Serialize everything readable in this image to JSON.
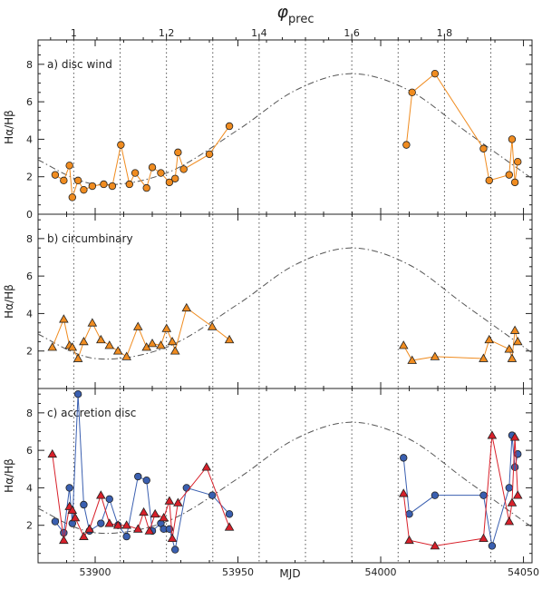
{
  "top_axis": {
    "label_main": "φ",
    "label_sub": "prec",
    "ticks": [
      1,
      1.2,
      1.4,
      1.6,
      1.8
    ],
    "tick_labels": [
      "1",
      "1.2",
      "1.4",
      "1.6",
      "1.8"
    ]
  },
  "x_axis": {
    "label": "MJD",
    "ticks": [
      53900,
      53950,
      54000,
      54050
    ],
    "tick_labels": [
      "53900",
      "53950",
      "54000",
      "54050"
    ],
    "xlim": [
      53880,
      54053
    ]
  },
  "y_label": "Hα/Hβ",
  "y_ticks": [
    "0",
    "2",
    "4",
    "6",
    "8"
  ],
  "colors": {
    "orange": "#f08c20",
    "blue": "#3a5fb0",
    "red": "#d8202a",
    "model": "#555555"
  },
  "chart_data": [
    {
      "panel_label": "a)  disc wind",
      "type": "line",
      "ylim": [
        0,
        9.3
      ],
      "model_curve": {
        "x": [
          53880,
          53900,
          53925,
          53950,
          53970,
          53990,
          54010,
          54030,
          54053
        ],
        "y": [
          2.9,
          1.6,
          2.2,
          4.5,
          6.6,
          7.5,
          6.6,
          4.4,
          1.9
        ]
      },
      "series": [
        {
          "marker": "circle",
          "color": "#f08c20",
          "segments": [
            {
              "x": [
                53886,
                53889,
                53891,
                53892,
                53894,
                53896,
                53899,
                53903,
                53906,
                53909,
                53912,
                53914,
                53918,
                53920,
                53923,
                53926,
                53928,
                53929,
                53931,
                53940,
                53947
              ],
              "y": [
                2.1,
                1.8,
                2.6,
                0.9,
                1.8,
                1.3,
                1.5,
                1.6,
                1.5,
                3.7,
                1.6,
                2.2,
                1.4,
                2.5,
                2.2,
                1.7,
                1.9,
                3.3,
                2.4,
                3.2,
                4.7
              ]
            },
            {
              "x": [
                54009,
                54011,
                54019,
                54036,
                54038,
                54045,
                54046,
                54047,
                54048
              ],
              "y": [
                3.7,
                6.5,
                7.5,
                3.5,
                1.8,
                2.1,
                4.0,
                1.7,
                2.8
              ]
            }
          ]
        }
      ]
    },
    {
      "panel_label": "b)  circumbinary",
      "type": "line",
      "ylim": [
        0,
        9.3
      ],
      "model_curve": {
        "x": [
          53880,
          53900,
          53925,
          53950,
          53970,
          53990,
          54010,
          54030,
          54053
        ],
        "y": [
          2.9,
          1.6,
          2.2,
          4.5,
          6.6,
          7.5,
          6.6,
          4.4,
          1.9
        ]
      },
      "series": [
        {
          "marker": "triangle",
          "color": "#f08c20",
          "segments": [
            {
              "x": [
                53885,
                53889,
                53891,
                53892,
                53894,
                53896,
                53899,
                53902,
                53905,
                53908,
                53911,
                53915,
                53918,
                53920,
                53923,
                53925,
                53927,
                53928,
                53932,
                53941,
                53947
              ],
              "y": [
                2.2,
                3.7,
                2.3,
                2.2,
                1.6,
                2.5,
                3.5,
                2.6,
                2.3,
                2.0,
                1.7,
                3.3,
                2.2,
                2.4,
                2.3,
                3.2,
                2.5,
                2.0,
                4.3,
                3.3,
                2.6
              ]
            },
            {
              "x": [
                54008,
                54011,
                54019,
                54036,
                54038,
                54045,
                54046,
                54047,
                54048
              ],
              "y": [
                2.3,
                1.5,
                1.7,
                1.6,
                2.6,
                2.1,
                1.6,
                3.1,
                2.5
              ]
            }
          ]
        }
      ]
    },
    {
      "panel_label": "c)     accretion disc",
      "type": "line",
      "ylim": [
        0,
        9.3
      ],
      "model_curve": {
        "x": [
          53880,
          53900,
          53925,
          53950,
          53970,
          53990,
          54010,
          54030,
          54053
        ],
        "y": [
          2.9,
          1.6,
          2.2,
          4.5,
          6.6,
          7.5,
          6.6,
          4.4,
          1.9
        ]
      },
      "series": [
        {
          "marker": "circle",
          "color": "#3a5fb0",
          "segments": [
            {
              "x": [
                53886,
                53889,
                53891,
                53892,
                53894,
                53896,
                53898,
                53902,
                53905,
                53908,
                53911,
                53915,
                53918,
                53920,
                53923,
                53924,
                53926,
                53928,
                53932,
                53941,
                53947
              ],
              "y": [
                2.2,
                1.6,
                4.0,
                2.1,
                9.0,
                3.1,
                1.7,
                2.1,
                3.4,
                2.0,
                1.4,
                4.6,
                4.4,
                1.7,
                2.1,
                1.8,
                1.8,
                0.7,
                4.0,
                3.6,
                2.6
              ]
            },
            {
              "x": [
                54008,
                54010,
                54019,
                54036,
                54039,
                54045,
                54046,
                54047,
                54048
              ],
              "y": [
                5.6,
                2.6,
                3.6,
                3.6,
                0.9,
                4.0,
                6.8,
                5.1,
                5.8
              ]
            }
          ]
        },
        {
          "marker": "triangle",
          "color": "#d8202a",
          "segments": [
            {
              "x": [
                53885,
                53889,
                53891,
                53892,
                53893,
                53896,
                53898,
                53902,
                53905,
                53908,
                53911,
                53915,
                53917,
                53919,
                53921,
                53924,
                53926,
                53927,
                53929,
                53939,
                53947
              ],
              "y": [
                5.8,
                1.2,
                3.0,
                2.8,
                2.4,
                1.4,
                1.8,
                3.6,
                2.1,
                2.0,
                2.0,
                1.8,
                2.7,
                1.7,
                2.6,
                2.4,
                3.3,
                1.3,
                3.2,
                5.1,
                1.9
              ]
            },
            {
              "x": [
                54008,
                54010,
                54019,
                54036,
                54039,
                54045,
                54046,
                54047,
                54048
              ],
              "y": [
                3.7,
                1.2,
                0.9,
                1.3,
                6.8,
                2.2,
                3.2,
                6.7,
                3.6
              ]
            }
          ]
        }
      ]
    }
  ]
}
